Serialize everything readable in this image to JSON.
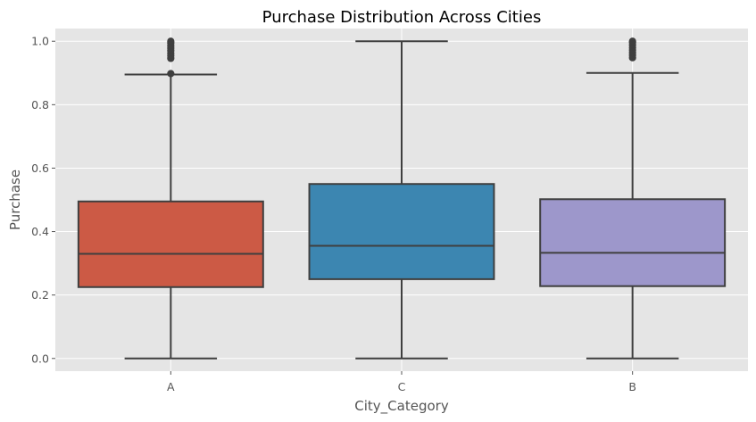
{
  "chart_data": {
    "type": "box",
    "title": "Purchase Distribution Across Cities",
    "xlabel": "City_Category",
    "ylabel": "Purchase",
    "ylim": [
      -0.04,
      1.04
    ],
    "yticks": [
      0.0,
      0.2,
      0.4,
      0.6,
      0.8,
      1.0
    ],
    "ytick_labels": [
      "0.0",
      "0.2",
      "0.4",
      "0.6",
      "0.8",
      "1.0"
    ],
    "grid": true,
    "style": "ggplot",
    "boxes": [
      {
        "category": "A",
        "color": "#cc5a45",
        "whisker_low": 0.0,
        "q1": 0.225,
        "median": 0.33,
        "q3": 0.495,
        "whisker_high": 0.895,
        "outliers": [
          0.898,
          0.946,
          0.955,
          0.962,
          0.97,
          0.978,
          0.986,
          0.994,
          1.0
        ]
      },
      {
        "category": "C",
        "color": "#3c86b1",
        "whisker_low": 0.0,
        "q1": 0.25,
        "median": 0.355,
        "q3": 0.55,
        "whisker_high": 1.0,
        "outliers": []
      },
      {
        "category": "B",
        "color": "#9d97cb",
        "whisker_low": 0.0,
        "q1": 0.228,
        "median": 0.333,
        "q3": 0.502,
        "whisker_high": 0.9,
        "outliers": [
          0.948,
          0.956,
          0.964,
          0.972,
          0.98,
          0.988,
          0.996,
          1.0
        ]
      }
    ]
  }
}
